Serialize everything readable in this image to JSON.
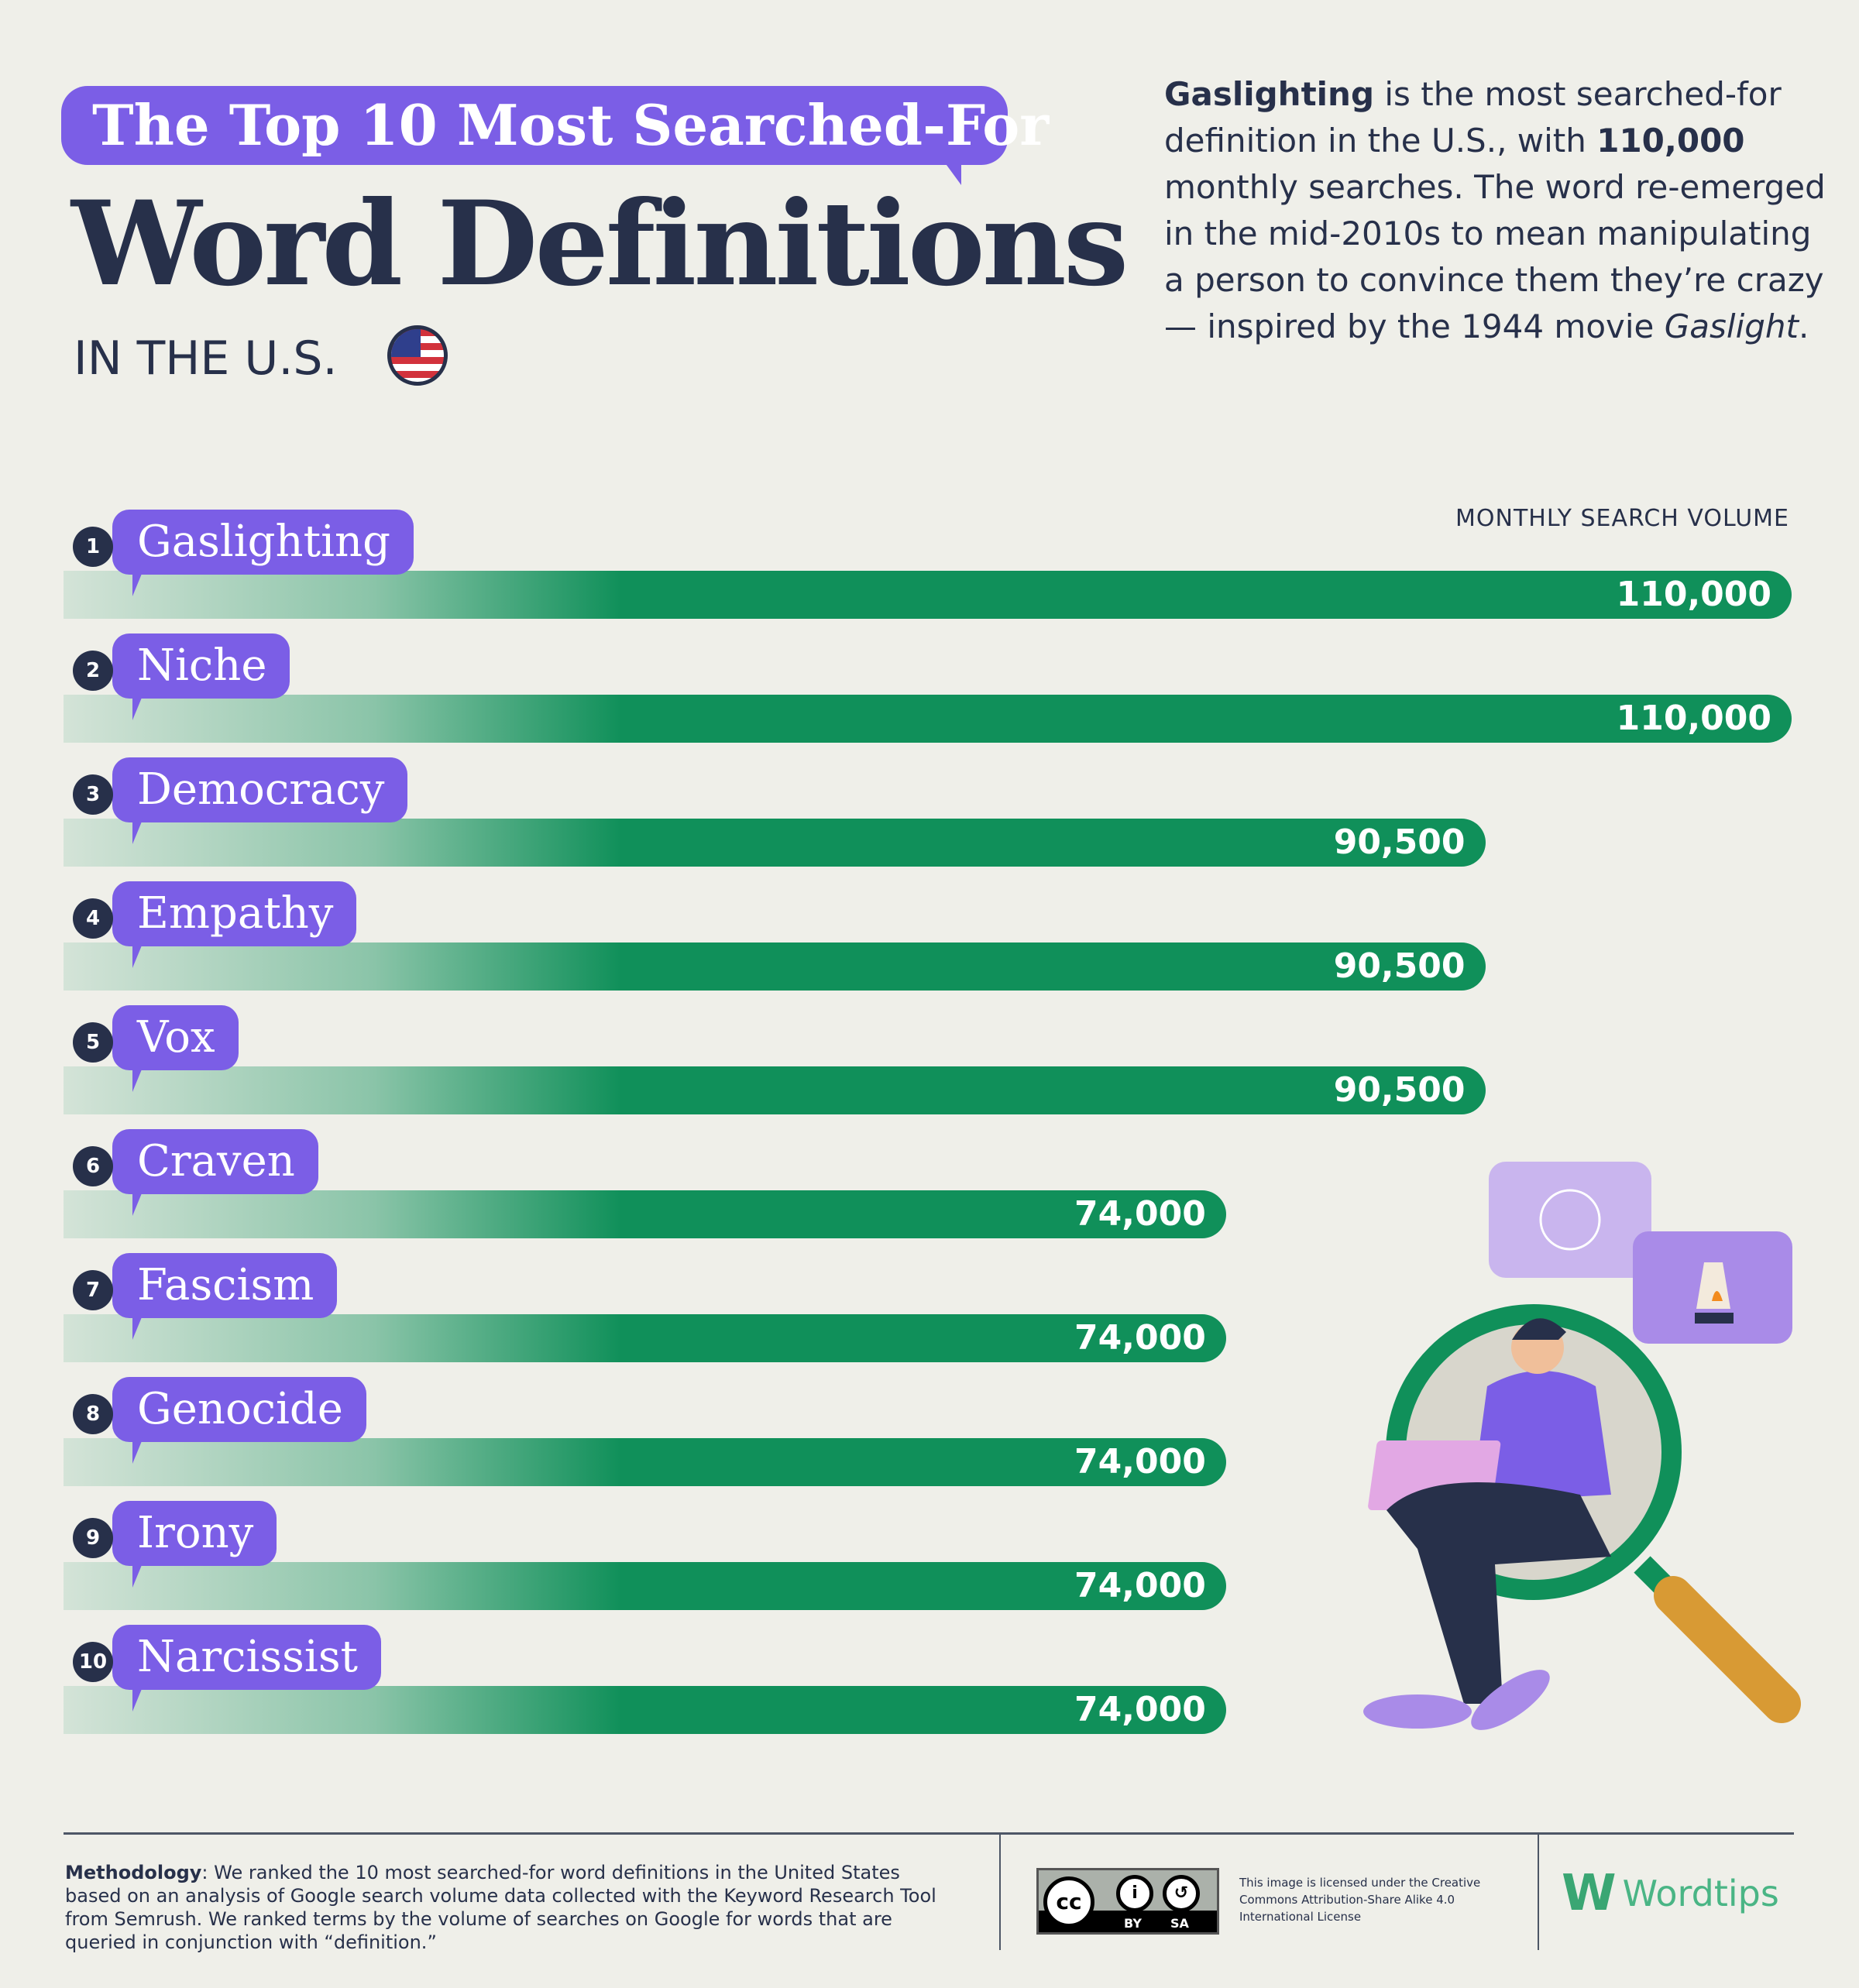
{
  "header": {
    "title_pill": "The Top 10 Most Searched-For",
    "title_main": "Word Definitions",
    "subtitle": "IN THE U.S."
  },
  "intro": {
    "bold_word": "Gaslighting",
    "part1": " is the most searched-for definition in the U.S., with ",
    "bold_number": "110,000",
    "part2": " monthly searches. The word re-emerged in the mid-2010s to mean manipulating a person to convince them they’re crazy — inspired by the 1944 movie ",
    "italic_title": "Gaslight",
    "part3": "."
  },
  "chart_data": {
    "type": "bar",
    "orientation": "horizontal",
    "axis_label": "MONTHLY SEARCH VOLUME",
    "xlim": [
      0,
      110000
    ],
    "bar_color": "#10905a",
    "label_color": "#7b5ee6",
    "categories": [
      "Gaslighting",
      "Niche",
      "Democracy",
      "Empathy",
      "Vox",
      "Craven",
      "Fascism",
      "Genocide",
      "Irony",
      "Narcissist"
    ],
    "ranks": [
      "1",
      "2",
      "3",
      "4",
      "5",
      "6",
      "7",
      "8",
      "9",
      "10"
    ],
    "values": [
      110000,
      110000,
      90500,
      90500,
      90500,
      74000,
      74000,
      74000,
      74000,
      74000
    ],
    "value_labels": [
      "110,000",
      "110,000",
      "90,500",
      "90,500",
      "90,500",
      "74,000",
      "74,000",
      "74,000",
      "74,000",
      "74,000"
    ]
  },
  "footer": {
    "methodology_label": "Methodology",
    "methodology_text": ": We ranked the 10 most searched-for word definitions in the United States based on an analysis of Google search volume data collected with the Keyword Research Tool from Semrush. We ranked terms by the volume of searches on Google for words that are queried in conjunction with “definition.”",
    "cc": {
      "cc": "cc",
      "by": "BY",
      "sa": "SA"
    },
    "license": "This image is licensed under the Creative Commons Attribution-Share Alike 4.0 International License",
    "logo": "Wordtips"
  }
}
